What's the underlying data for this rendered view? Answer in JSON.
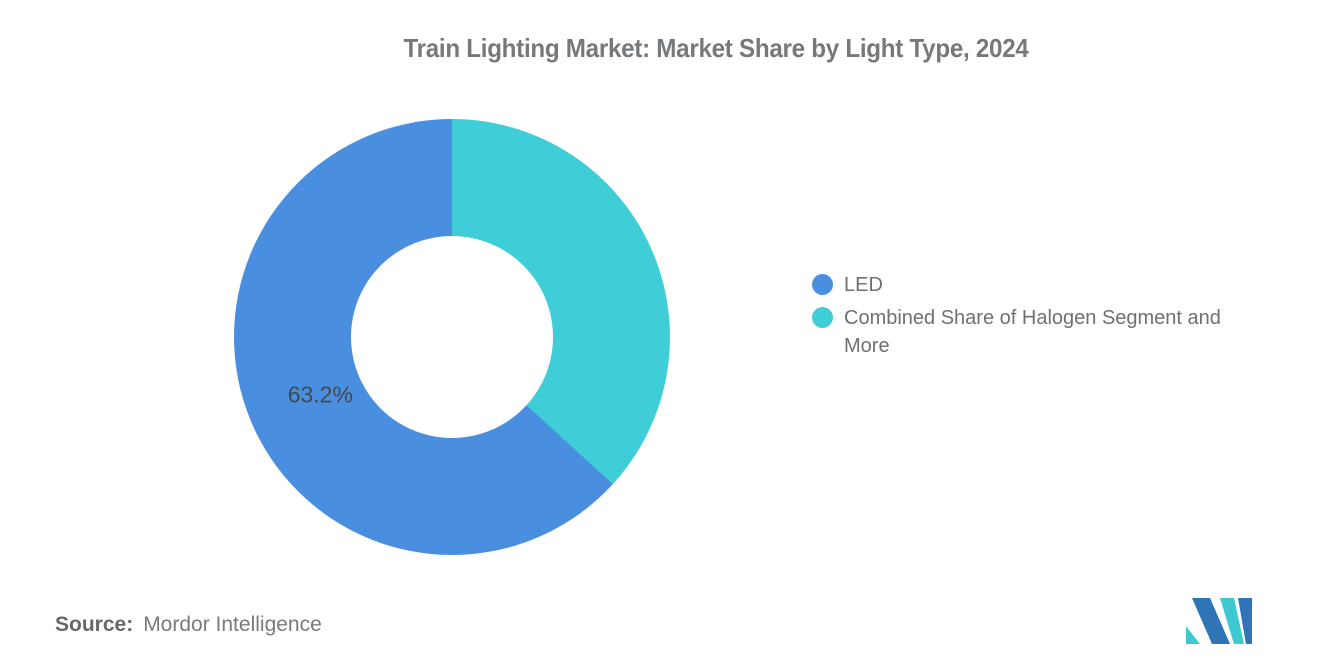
{
  "title": "Train Lighting Market: Market Share by Light Type, 2024",
  "chart_data": {
    "type": "pie",
    "subtype": "donut",
    "title": "Train Lighting Market: Market Share by Light Type, 2024",
    "hole_ratio": 0.46,
    "start_angle_deg": 0,
    "direction": "counterclockwise",
    "legend_position": "right",
    "series": [
      {
        "name": "LED",
        "value": 63.2,
        "color": "#4A8EE0",
        "data_label": "63.2%"
      },
      {
        "name": "Combined Share of Halogen Segment and More",
        "value": 36.8,
        "color": "#3FCDD8",
        "data_label": null
      }
    ]
  },
  "legend": {
    "items": [
      {
        "label": "LED",
        "color": "#4A8EE0"
      },
      {
        "label": "Combined Share of Halogen Segment and More",
        "color": "#3FCDD8"
      }
    ]
  },
  "source": {
    "label": "Source:",
    "text": "Mordor Intelligence"
  },
  "logo": {
    "name": "mordor-intelligence-logo",
    "blue": "#2E74B6",
    "teal": "#3EC8D0"
  }
}
